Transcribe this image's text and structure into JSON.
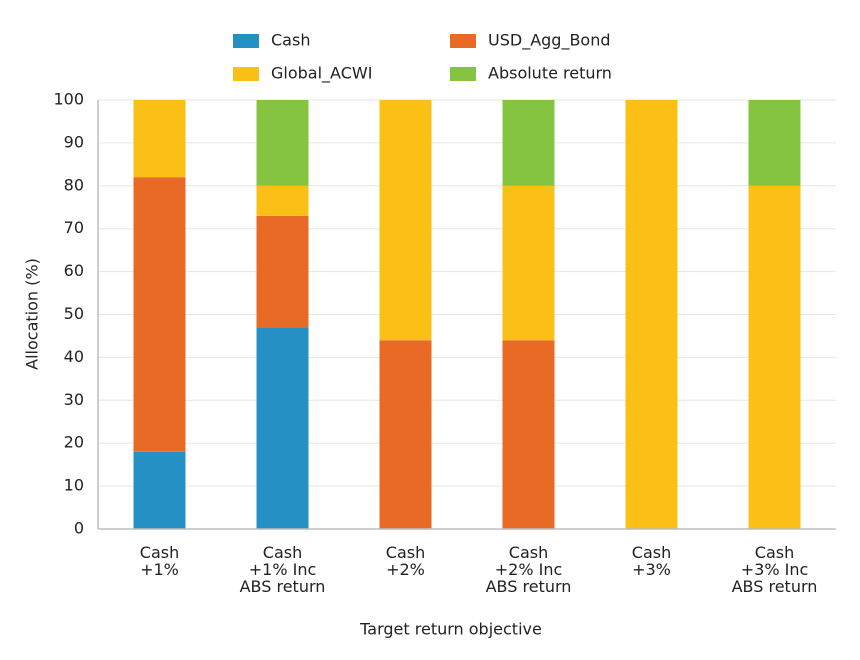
{
  "chart_data": {
    "type": "stacked-bar",
    "x_label": "Target return objective",
    "y_label": "Allocation (%)",
    "categories": [
      "Cash\n+1%",
      "Cash\n+1% Inc\nABS return",
      "Cash\n+2%",
      "Cash\n+2% Inc\nABS return",
      "Cash\n+3%",
      "Cash\n+3% Inc\nABS return"
    ],
    "series": [
      {
        "name": "Cash",
        "color": "#2490c4",
        "values": [
          18,
          47,
          0,
          0,
          0,
          0
        ]
      },
      {
        "name": "USD_Agg_Bond",
        "color": "#e86a24",
        "values": [
          64,
          26,
          44,
          44,
          0,
          0
        ]
      },
      {
        "name": "Global_ACWI",
        "color": "#fbc016",
        "values": [
          18,
          7,
          56,
          36,
          100,
          80
        ]
      },
      {
        "name": "Absolute return",
        "color": "#84c441",
        "values": [
          0,
          20,
          0,
          20,
          0,
          20
        ]
      }
    ],
    "ylim": [
      0,
      100
    ],
    "yticks": [
      0,
      10,
      20,
      30,
      40,
      50,
      60,
      70,
      80,
      90,
      100
    ],
    "grid": true
  }
}
